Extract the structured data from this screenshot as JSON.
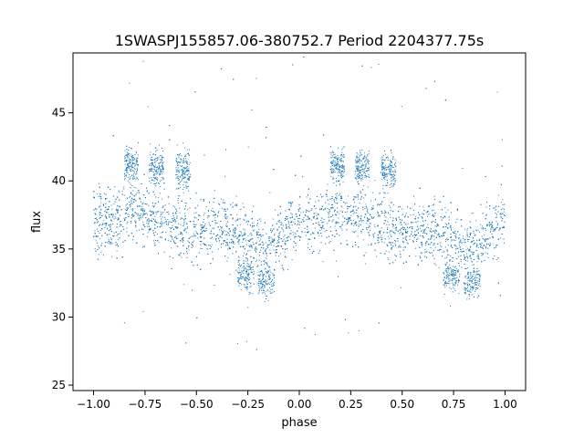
{
  "chart_data": {
    "type": "scatter",
    "title": "1SWASPJ155857.06-380752.7 Period 2204377.75s",
    "xlabel": "phase",
    "ylabel": "flux",
    "xlim": [
      -1.1,
      1.1
    ],
    "ylim": [
      24.6,
      49.4
    ],
    "xticks": [
      -1.0,
      -0.75,
      -0.5,
      -0.25,
      0.0,
      0.25,
      0.5,
      0.75,
      1.0
    ],
    "xtick_labels": [
      "−1.00",
      "−0.75",
      "−0.50",
      "−0.25",
      "0.00",
      "0.25",
      "0.50",
      "0.75",
      "1.00"
    ],
    "yticks": [
      25,
      30,
      35,
      40,
      45
    ],
    "ytick_labels": [
      "25",
      "30",
      "35",
      "40",
      "45"
    ],
    "grid": false,
    "marker_color": "#1f77b4",
    "series": [
      {
        "profile": {
          "x": [
            -1.0,
            -0.9,
            -0.8,
            -0.7,
            -0.6,
            -0.5,
            -0.4,
            -0.3,
            -0.25,
            -0.2,
            -0.15,
            -0.1,
            -0.05,
            0.0,
            0.1,
            0.2,
            0.3,
            0.4,
            0.5,
            0.6,
            0.7,
            0.75,
            0.8,
            0.85,
            0.9,
            0.95,
            1.0
          ],
          "y": [
            37.2,
            37.0,
            37.8,
            37.2,
            36.8,
            36.2,
            36.6,
            36.0,
            35.6,
            35.4,
            35.2,
            35.8,
            36.6,
            37.2,
            37.0,
            37.8,
            37.2,
            36.8,
            36.2,
            36.6,
            36.0,
            35.6,
            35.4,
            35.2,
            35.8,
            36.6,
            37.2
          ]
        },
        "bright_segments": [
          [
            -0.85,
            -0.78,
            41.2
          ],
          [
            -0.73,
            -0.66,
            41.0
          ],
          [
            -0.6,
            -0.53,
            40.8
          ],
          [
            0.15,
            0.22,
            41.2
          ],
          [
            0.27,
            0.34,
            41.0
          ],
          [
            0.4,
            0.47,
            40.8
          ]
        ],
        "dip_segments": [
          [
            -0.3,
            -0.22,
            33.0
          ],
          [
            -0.2,
            -0.12,
            32.6
          ],
          [
            0.7,
            0.78,
            33.0
          ],
          [
            0.8,
            0.88,
            32.6
          ]
        ]
      }
    ]
  }
}
